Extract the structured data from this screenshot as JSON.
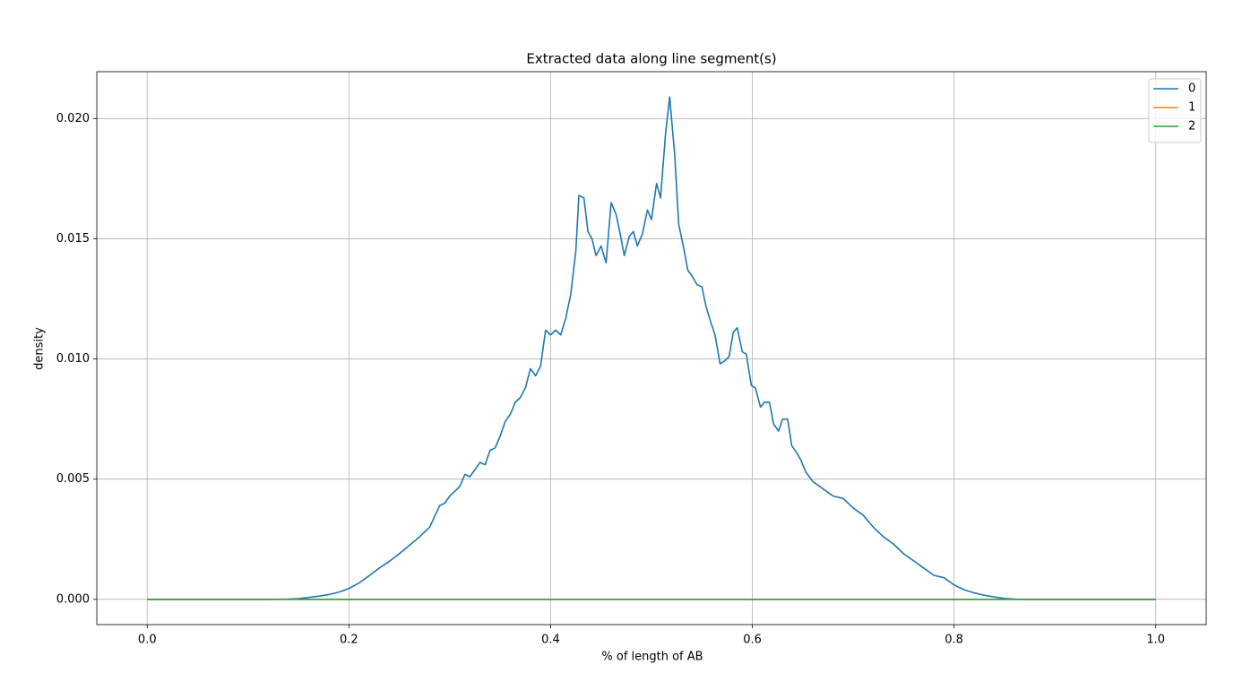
{
  "chart_data": {
    "type": "line",
    "title": "Extracted data along line segment(s)",
    "xlabel": "% of length of AB",
    "ylabel": "density",
    "x": [
      0,
      0.05,
      0.1,
      0.12,
      0.14,
      0.15,
      0.16,
      0.17,
      0.18,
      0.19,
      0.2,
      0.21,
      0.22,
      0.23,
      0.24,
      0.25,
      0.26,
      0.27,
      0.28,
      0.29,
      0.295,
      0.3,
      0.31,
      0.315,
      0.32,
      0.33,
      0.335,
      0.34,
      0.345,
      0.35,
      0.355,
      0.36,
      0.365,
      0.37,
      0.375,
      0.38,
      0.385,
      0.39,
      0.395,
      0.4,
      0.405,
      0.41,
      0.415,
      0.42,
      0.425,
      0.428,
      0.433,
      0.437,
      0.441,
      0.445,
      0.45,
      0.455,
      0.46,
      0.465,
      0.469,
      0.473,
      0.478,
      0.482,
      0.486,
      0.491,
      0.496,
      0.5,
      0.505,
      0.509,
      0.514,
      0.518,
      0.523,
      0.527,
      0.532,
      0.536,
      0.541,
      0.545,
      0.55,
      0.554,
      0.559,
      0.563,
      0.568,
      0.572,
      0.577,
      0.581,
      0.585,
      0.59,
      0.594,
      0.599,
      0.603,
      0.608,
      0.612,
      0.617,
      0.621,
      0.626,
      0.63,
      0.635,
      0.639,
      0.644,
      0.648,
      0.653,
      0.66,
      0.67,
      0.68,
      0.69,
      0.7,
      0.71,
      0.72,
      0.73,
      0.74,
      0.75,
      0.76,
      0.77,
      0.78,
      0.79,
      0.8,
      0.81,
      0.82,
      0.83,
      0.84,
      0.85,
      0.86,
      0.87,
      0.9,
      0.95,
      1
    ],
    "series": [
      {
        "name": "0",
        "color": "#1f77b4",
        "values": [
          0,
          0,
          0,
          0,
          1e-05,
          3e-05,
          8e-05,
          0.00013,
          0.0002,
          0.0003,
          0.00045,
          0.00068,
          0.00098,
          0.0013,
          0.00158,
          0.0019,
          0.00225,
          0.0026,
          0.003,
          0.0039,
          0.004,
          0.0043,
          0.0047,
          0.0052,
          0.0051,
          0.0057,
          0.0056,
          0.0062,
          0.0063,
          0.0068,
          0.0074,
          0.0077,
          0.0082,
          0.0084,
          0.0088,
          0.0096,
          0.0093,
          0.0097,
          0.0112,
          0.011,
          0.0112,
          0.011,
          0.0117,
          0.0127,
          0.0145,
          0.0168,
          0.0167,
          0.0153,
          0.015,
          0.0143,
          0.0147,
          0.014,
          0.0165,
          0.016,
          0.0152,
          0.0143,
          0.0151,
          0.0153,
          0.0147,
          0.0152,
          0.0162,
          0.0158,
          0.0173,
          0.0167,
          0.0194,
          0.0209,
          0.0185,
          0.0156,
          0.0146,
          0.0137,
          0.0134,
          0.0131,
          0.013,
          0.0122,
          0.0115,
          0.011,
          0.0098,
          0.0099,
          0.0101,
          0.0111,
          0.0113,
          0.0103,
          0.0102,
          0.0089,
          0.0088,
          0.008,
          0.0082,
          0.0082,
          0.0073,
          0.007,
          0.0075,
          0.0075,
          0.0064,
          0.0061,
          0.0058,
          0.0053,
          0.0049,
          0.0046,
          0.0043,
          0.0042,
          0.0038,
          0.0035,
          0.003,
          0.0026,
          0.0023,
          0.0019,
          0.0016,
          0.0013,
          0.001,
          0.0009,
          0.0006,
          0.0004,
          0.00027,
          0.00017,
          0.0001,
          4e-05,
          1e-05,
          0,
          0,
          0,
          0
        ]
      },
      {
        "name": "1",
        "color": "#ff7f0e",
        "values": [
          0,
          0,
          0,
          0,
          0,
          0,
          0,
          0,
          0,
          0,
          0,
          0,
          0,
          0,
          0,
          0,
          0,
          0,
          0,
          0,
          0,
          0,
          0,
          0,
          0,
          0,
          0,
          0,
          0,
          0,
          0,
          0,
          0,
          0,
          0,
          0,
          0,
          0,
          0,
          0,
          0,
          0,
          0,
          0,
          0,
          0,
          0,
          0,
          0,
          0,
          0,
          0,
          0,
          0,
          0,
          0,
          0,
          0,
          0,
          0,
          0,
          0,
          0,
          0,
          0,
          0,
          0,
          0,
          0,
          0,
          0,
          0,
          0,
          0,
          0,
          0,
          0,
          0,
          0,
          0,
          0,
          0,
          0,
          0,
          0,
          0,
          0,
          0,
          0,
          0,
          0,
          0,
          0,
          0,
          0,
          0,
          0,
          0,
          0,
          0,
          0,
          0,
          0,
          0,
          0,
          0,
          0,
          0,
          0,
          0,
          0,
          0,
          0,
          0,
          0,
          0,
          0,
          0,
          0,
          0,
          0
        ]
      },
      {
        "name": "2",
        "color": "#2ca02c",
        "values": [
          0,
          0,
          0,
          0,
          0,
          0,
          0,
          0,
          0,
          0,
          0,
          0,
          0,
          0,
          0,
          0,
          0,
          0,
          0,
          0,
          0,
          0,
          0,
          0,
          0,
          0,
          0,
          0,
          0,
          0,
          0,
          0,
          0,
          0,
          0,
          0,
          0,
          0,
          0,
          0,
          0,
          0,
          0,
          0,
          0,
          0,
          0,
          0,
          0,
          0,
          0,
          0,
          0,
          0,
          0,
          0,
          0,
          0,
          0,
          0,
          0,
          0,
          0,
          0,
          0,
          0,
          0,
          0,
          0,
          0,
          0,
          0,
          0,
          0,
          0,
          0,
          0,
          0,
          0,
          0,
          0,
          0,
          0,
          0,
          0,
          0,
          0,
          0,
          0,
          0,
          0,
          0,
          0,
          0,
          0,
          0,
          0,
          0,
          0,
          0,
          0,
          0,
          0,
          0,
          0,
          0,
          0,
          0,
          0,
          0,
          0,
          0,
          0,
          0,
          0,
          0,
          0,
          0,
          0,
          0,
          0
        ]
      }
    ],
    "xlim": [
      -0.05,
      1.05
    ],
    "xticks": [
      {
        "value": 0,
        "label": "0.0"
      },
      0.2,
      0.4,
      0.6,
      0.8,
      {
        "value": 1,
        "label": "1.0"
      }
    ],
    "ylim": [
      -0.00105,
      0.02195
    ],
    "yticks": [
      {
        "value": 0,
        "label": "0.000"
      },
      {
        "value": 0.005,
        "label": "0.005"
      },
      {
        "value": 0.01,
        "label": "0.010"
      },
      {
        "value": 0.015,
        "label": "0.015"
      },
      {
        "value": 0.02,
        "label": "0.020"
      }
    ],
    "grid": true,
    "legend": "upper right"
  }
}
